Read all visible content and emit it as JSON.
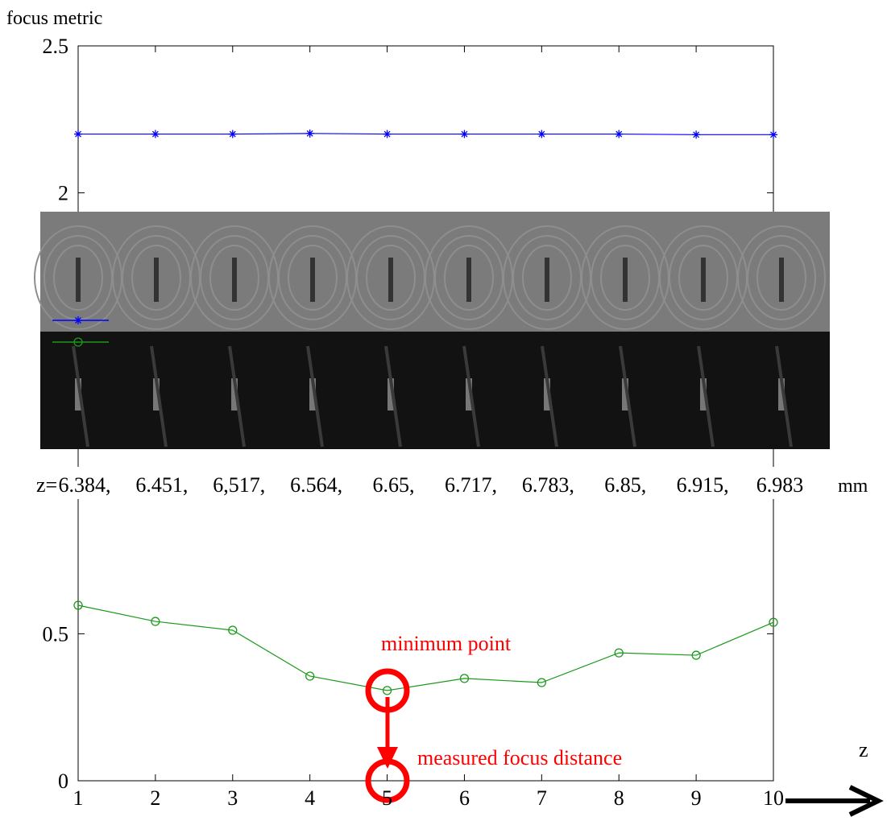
{
  "chart_data": {
    "type": "line",
    "y_label": "focus metric",
    "x": [
      1,
      2,
      3,
      4,
      5,
      6,
      7,
      8,
      9,
      10
    ],
    "series": [
      {
        "color": "#0000ff",
        "marker": "star",
        "values": [
          2.2,
          2.2,
          2.2,
          2.202,
          2.2,
          2.2,
          2.2,
          2.2,
          2.198,
          2.198
        ]
      },
      {
        "color": "#1a9a1a",
        "marker": "circle",
        "values": [
          0.597,
          0.542,
          0.512,
          0.356,
          0.307,
          0.348,
          0.334,
          0.435,
          0.427,
          0.539
        ]
      }
    ],
    "xlim": [
      1,
      10
    ],
    "xticks": [
      1,
      2,
      3,
      4,
      5,
      6,
      7,
      8,
      9,
      10
    ],
    "ylim": [
      0,
      2.5
    ],
    "yticks": [
      0,
      0.5,
      2,
      2.5
    ],
    "z_prefix": "z=",
    "z_values": [
      "6.384,",
      "6.451,",
      "6,517,",
      "6.564,",
      "6.65,",
      "6.717,",
      "6.783,",
      "6.85,",
      "6.915,",
      "6.983"
    ],
    "z_unit": "mm",
    "annotations": [
      "minimum point",
      "measured focus distance"
    ],
    "z_arrow_label": "z"
  }
}
